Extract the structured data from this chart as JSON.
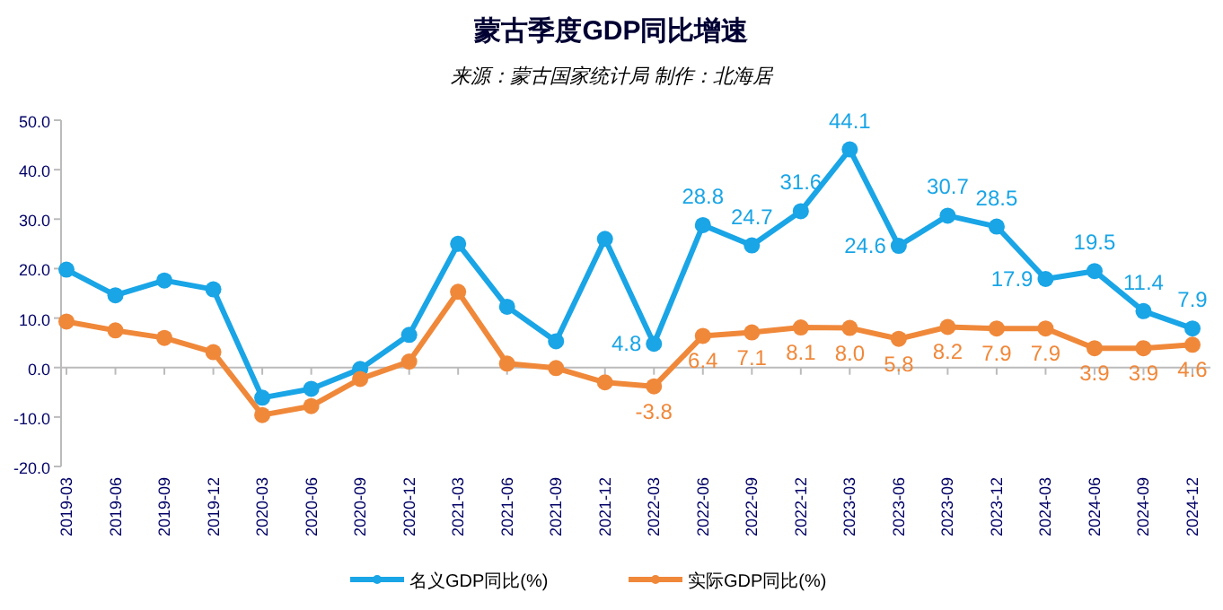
{
  "chart_data": {
    "type": "line",
    "title": "蒙古季度GDP同比增速",
    "subtitle": "来源：蒙古国家统计局 制作：北海居",
    "categories": [
      "2019-03",
      "2019-06",
      "2019-09",
      "2019-12",
      "2020-03",
      "2020-06",
      "2020-09",
      "2020-12",
      "2021-03",
      "2021-06",
      "2021-09",
      "2021-12",
      "2022-03",
      "2022-06",
      "2022-09",
      "2022-12",
      "2023-03",
      "2023-06",
      "2023-09",
      "2023-12",
      "2024-03",
      "2024-06",
      "2024-09",
      "2024-12"
    ],
    "series": [
      {
        "name": "名义GDP同比(%)",
        "color": "#19a5e6",
        "values": [
          19.8,
          14.6,
          17.6,
          15.8,
          -6.1,
          -4.3,
          -0.3,
          6.6,
          25.0,
          12.3,
          5.3,
          26.0,
          4.8,
          28.8,
          24.7,
          31.6,
          44.1,
          24.6,
          30.7,
          28.5,
          17.9,
          19.5,
          11.4,
          7.9
        ],
        "value_labels": [
          null,
          null,
          null,
          null,
          null,
          null,
          null,
          null,
          null,
          null,
          null,
          null,
          "4.8",
          "28.8",
          "24.7",
          "31.6",
          "44.1",
          "24.6",
          "30.7",
          "28.5",
          "17.9",
          "19.5",
          "11.4",
          "7.9"
        ]
      },
      {
        "name": "实际GDP同比(%)",
        "color": "#f0883a",
        "values": [
          9.3,
          7.5,
          6.0,
          3.1,
          -9.6,
          -7.8,
          -2.3,
          1.2,
          15.3,
          0.8,
          -0.1,
          -3.0,
          -3.8,
          6.4,
          7.1,
          8.1,
          8.0,
          5.8,
          8.2,
          7.9,
          7.9,
          3.9,
          3.9,
          4.6
        ],
        "value_labels": [
          null,
          null,
          null,
          null,
          null,
          null,
          null,
          null,
          null,
          null,
          null,
          null,
          "-3.8",
          "6.4",
          "7.1",
          "8.1",
          "8.0",
          "5.8",
          "8.2",
          "7.9",
          "7.9",
          "3.9",
          "3.9",
          "4.6"
        ]
      }
    ],
    "ylim": [
      -20,
      50
    ],
    "yticks": [
      {
        "value": -20,
        "label": "-20.0"
      },
      {
        "value": -10,
        "label": "-10.0"
      },
      {
        "value": 0,
        "label": "0.0"
      },
      {
        "value": 10,
        "label": "10.0"
      },
      {
        "value": 20,
        "label": "20.0"
      },
      {
        "value": 30,
        "label": "30.0"
      },
      {
        "value": 40,
        "label": "40.0"
      },
      {
        "value": 50,
        "label": "50.0"
      }
    ],
    "legend": "bottom",
    "marker": "circle",
    "line_style": "solid"
  }
}
